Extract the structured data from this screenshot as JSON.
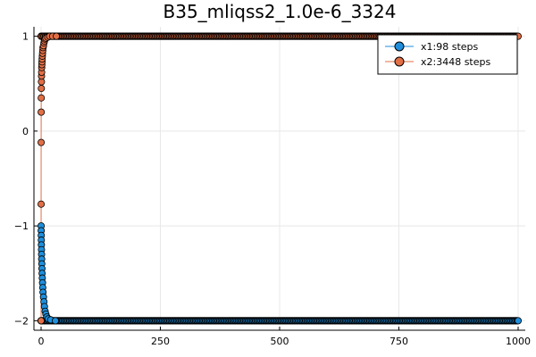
{
  "chart_data": {
    "type": "scatter",
    "title": "B35_mliqss2_1.0e-6_3324",
    "xlabel": "",
    "ylabel": "",
    "xlim": [
      -15,
      1015
    ],
    "ylim": [
      -2.1,
      1.1
    ],
    "xticks": [
      0,
      250,
      500,
      750,
      1000
    ],
    "xtick_labels": [
      "0",
      "250",
      "500",
      "750",
      "1000"
    ],
    "yticks": [
      1,
      0,
      -1,
      -2
    ],
    "ytick_labels": [
      "1",
      "0",
      "−1",
      "−2"
    ],
    "grid": true,
    "legend_position": "top-right",
    "series": [
      {
        "name": "x1:98 steps",
        "color": "#1f8fdc",
        "marker": "circle",
        "x": [
          0,
          0.1,
          0.2,
          0.3,
          0.45,
          0.6,
          0.8,
          1.0,
          1.2,
          1.5,
          1.8,
          2.1,
          2.5,
          3.0,
          3.5,
          4.0,
          5.0,
          6.0,
          7.0,
          8.5,
          10,
          12,
          15,
          20,
          30,
          1000
        ],
        "y": [
          -2.0,
          -1.0,
          -1.05,
          -1.1,
          -1.15,
          -1.2,
          -1.25,
          -1.3,
          -1.35,
          -1.4,
          -1.45,
          -1.5,
          -1.55,
          -1.6,
          -1.65,
          -1.7,
          -1.75,
          -1.8,
          -1.85,
          -1.9,
          -1.93,
          -1.96,
          -1.98,
          -1.99,
          -2.0,
          -2.0
        ]
      },
      {
        "name": "x2:3448 steps",
        "color": "#e26f46",
        "marker": "circle",
        "x": [
          0,
          0.05,
          0.1,
          0.2,
          0.3,
          0.5,
          0.7,
          0.9,
          1.1,
          1.3,
          1.6,
          1.9,
          2.2,
          2.6,
          3.0,
          3.5,
          4.0,
          5.0,
          6.0,
          7.0,
          8.0,
          10,
          14,
          18,
          24,
          32,
          1000
        ],
        "y": [
          -2.0,
          -0.77,
          -0.12,
          0.2,
          0.35,
          0.45,
          0.52,
          0.58,
          0.62,
          0.67,
          0.7,
          0.73,
          0.76,
          0.79,
          0.82,
          0.85,
          0.88,
          0.9,
          0.93,
          0.95,
          0.97,
          0.98,
          0.99,
          1.0,
          1.0,
          1.0,
          1.0
        ]
      }
    ],
    "dense_bands": [
      {
        "series": 1,
        "x_from": 0,
        "x_to": 1000,
        "y": 1.0
      },
      {
        "series": 0,
        "x_from": 0,
        "x_to": 1000,
        "y": -2.0
      }
    ]
  }
}
